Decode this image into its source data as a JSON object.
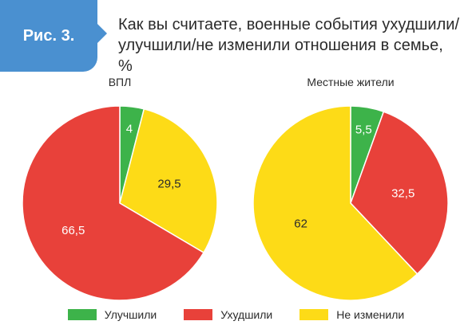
{
  "figure_label": "Рис. 3.",
  "title": "Как вы считаете, военные события ухудшили/ улучшили/не изменили отношения в семье, %",
  "chart_data": {
    "type": "pie",
    "categories": [
      "Улучшили",
      "Ухудшили",
      "Не изменили"
    ],
    "colors": {
      "Улучшили": "#3db34a",
      "Ухудшили": "#e8413a",
      "Не изменили": "#fddb17"
    },
    "legend_placement": "bottom",
    "charts": [
      {
        "title": "ВПЛ",
        "slices": [
          {
            "label": "Улучшили",
            "value": 4,
            "display": "4"
          },
          {
            "label": "Не изменили",
            "value": 29.5,
            "display": "29,5"
          },
          {
            "label": "Ухудшили",
            "value": 66.5,
            "display": "66,5"
          }
        ]
      },
      {
        "title": "Местные жители",
        "slices": [
          {
            "label": "Улучшили",
            "value": 5.5,
            "display": "5,5"
          },
          {
            "label": "Ухудшили",
            "value": 32.5,
            "display": "32,5"
          },
          {
            "label": "Не изменили",
            "value": 62,
            "display": "62"
          }
        ]
      }
    ]
  }
}
